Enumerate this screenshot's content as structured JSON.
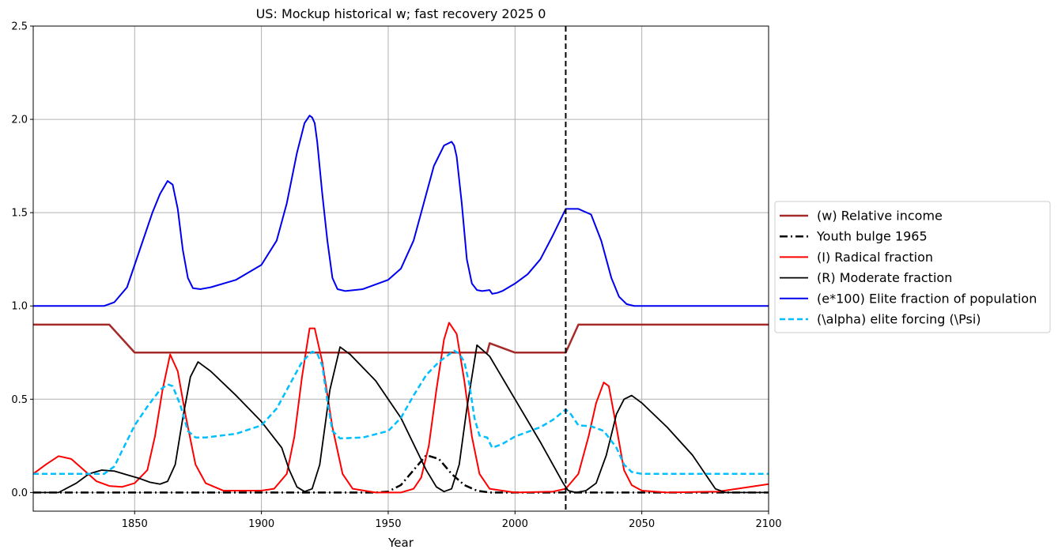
{
  "chart_data": {
    "type": "line",
    "title": "US: Mockup historical w; fast recovery 2025 0",
    "xlabel": "Year",
    "ylabel": "",
    "xlim": [
      1810,
      2100
    ],
    "ylim": [
      -0.1,
      2.5
    ],
    "xticks": [
      1850,
      1900,
      1950,
      2000,
      2050,
      2100
    ],
    "xtick_labels": [
      "1850",
      "1900",
      "1950",
      "2000",
      "2050",
      "2100"
    ],
    "yticks": [
      0.0,
      0.5,
      1.0,
      1.5,
      2.0,
      2.5
    ],
    "ytick_labels": [
      "0.0",
      "0.5",
      "1.0",
      "1.5",
      "2.0",
      "2.5"
    ],
    "grid": true,
    "legend_position": "outside-right",
    "vline": {
      "x": 2020,
      "color": "#000000",
      "style": "dashed"
    },
    "series": [
      {
        "name": "(w) Relative income",
        "color": "#a52a2a",
        "style": "solid",
        "width": 2.5,
        "x": [
          1810,
          1840,
          1850,
          1870,
          1900,
          1950,
          1989,
          1990,
          2000,
          2020,
          2025,
          2050,
          2100
        ],
        "y": [
          0.9,
          0.9,
          0.75,
          0.75,
          0.75,
          0.75,
          0.75,
          0.8,
          0.75,
          0.75,
          0.9,
          0.9,
          0.9
        ]
      },
      {
        "name": "Youth bulge 1965",
        "color": "#000000",
        "style": "dashdot",
        "width": 2.5,
        "x": [
          1810,
          1945,
          1950,
          1955,
          1960,
          1965,
          1970,
          1975,
          1980,
          1985,
          1990,
          2000,
          2100
        ],
        "y": [
          0,
          0,
          0.005,
          0.04,
          0.12,
          0.2,
          0.18,
          0.1,
          0.04,
          0.01,
          0,
          0,
          0
        ]
      },
      {
        "name": "(I) Radical fraction",
        "color": "#ff0000",
        "style": "solid",
        "width": 2,
        "x": [
          1810,
          1815,
          1820,
          1825,
          1830,
          1835,
          1840,
          1845,
          1850,
          1855,
          1858,
          1861,
          1864,
          1867,
          1870,
          1874,
          1878,
          1885,
          1900,
          1905,
          1910,
          1913,
          1916,
          1919,
          1921,
          1924,
          1928,
          1932,
          1936,
          1945,
          1955,
          1960,
          1963,
          1966,
          1969,
          1972,
          1974,
          1977,
          1980,
          1983,
          1986,
          1990,
          2000,
          2015,
          2020,
          2025,
          2029,
          2032,
          2035,
          2037,
          2040,
          2043,
          2046,
          2050,
          2060,
          2080,
          2100
        ],
        "y": [
          0.1,
          0.15,
          0.195,
          0.18,
          0.12,
          0.06,
          0.035,
          0.03,
          0.05,
          0.12,
          0.3,
          0.55,
          0.74,
          0.65,
          0.42,
          0.15,
          0.05,
          0.01,
          0.01,
          0.02,
          0.1,
          0.3,
          0.62,
          0.88,
          0.88,
          0.7,
          0.35,
          0.1,
          0.02,
          0.0,
          0.0,
          0.02,
          0.08,
          0.25,
          0.55,
          0.82,
          0.91,
          0.85,
          0.6,
          0.3,
          0.1,
          0.02,
          0.0,
          0.005,
          0.02,
          0.1,
          0.3,
          0.48,
          0.59,
          0.57,
          0.35,
          0.12,
          0.04,
          0.01,
          0.0,
          0.005,
          0.045
        ]
      },
      {
        "name": "(R) Moderate fraction",
        "color": "#000000",
        "style": "solid",
        "width": 1.8,
        "x": [
          1810,
          1820,
          1827,
          1832,
          1837,
          1842,
          1847,
          1852,
          1856,
          1860,
          1863,
          1866,
          1869,
          1872,
          1875,
          1880,
          1890,
          1900,
          1908,
          1911,
          1914,
          1917,
          1920,
          1923,
          1927,
          1931,
          1935,
          1945,
          1955,
          1965,
          1969,
          1972,
          1975,
          1978,
          1981,
          1985,
          1990,
          2000,
          2010,
          2019,
          2021,
          2024,
          2028,
          2032,
          2036,
          2040,
          2043,
          2046,
          2050,
          2060,
          2070,
          2079,
          2083,
          2100
        ],
        "y": [
          0.0,
          0.0,
          0.05,
          0.1,
          0.12,
          0.115,
          0.095,
          0.075,
          0.055,
          0.045,
          0.06,
          0.15,
          0.4,
          0.62,
          0.7,
          0.65,
          0.52,
          0.38,
          0.24,
          0.12,
          0.03,
          0.005,
          0.02,
          0.15,
          0.55,
          0.78,
          0.74,
          0.6,
          0.4,
          0.12,
          0.03,
          0.005,
          0.02,
          0.15,
          0.45,
          0.79,
          0.73,
          0.5,
          0.27,
          0.05,
          0.01,
          0.0,
          0.01,
          0.05,
          0.2,
          0.42,
          0.5,
          0.52,
          0.48,
          0.35,
          0.2,
          0.02,
          0.0,
          0.0
        ]
      },
      {
        "name": "(e*100) Elite fraction of population",
        "color": "#0000ee",
        "style": "solid",
        "width": 2,
        "x": [
          1810,
          1838,
          1842,
          1847,
          1852,
          1857,
          1860,
          1863,
          1865,
          1867,
          1869,
          1871,
          1873,
          1876,
          1880,
          1890,
          1900,
          1906,
          1910,
          1914,
          1917,
          1919,
          1920,
          1921,
          1922,
          1924,
          1926,
          1928,
          1930,
          1933,
          1940,
          1950,
          1955,
          1960,
          1964,
          1968,
          1972,
          1975,
          1976,
          1977,
          1979,
          1981,
          1983,
          1985,
          1987,
          1990,
          1991,
          1993,
          1995,
          2000,
          2005,
          2010,
          2015,
          2020,
          2025,
          2030,
          2034,
          2038,
          2041,
          2044,
          2047,
          2050,
          2060,
          2100
        ],
        "y": [
          1.0,
          1.0,
          1.02,
          1.1,
          1.3,
          1.5,
          1.6,
          1.67,
          1.65,
          1.52,
          1.3,
          1.15,
          1.095,
          1.09,
          1.1,
          1.14,
          1.22,
          1.35,
          1.55,
          1.82,
          1.98,
          2.02,
          2.01,
          1.98,
          1.88,
          1.6,
          1.35,
          1.15,
          1.09,
          1.08,
          1.09,
          1.14,
          1.2,
          1.35,
          1.55,
          1.75,
          1.86,
          1.88,
          1.86,
          1.8,
          1.55,
          1.25,
          1.12,
          1.085,
          1.08,
          1.085,
          1.065,
          1.07,
          1.08,
          1.12,
          1.17,
          1.25,
          1.38,
          1.52,
          1.52,
          1.49,
          1.35,
          1.15,
          1.05,
          1.01,
          1.0,
          1.0,
          1.0,
          1.0
        ]
      },
      {
        "name": "(\\alpha) elite forcing (\\Psi)",
        "color": "#00bfff",
        "style": "dashed",
        "width": 2.5,
        "x": [
          1810,
          1838,
          1842,
          1846,
          1850,
          1855,
          1860,
          1863,
          1865,
          1868,
          1871,
          1874,
          1878,
          1890,
          1900,
          1906,
          1912,
          1916,
          1920,
          1922,
          1924,
          1926,
          1928,
          1931,
          1940,
          1950,
          1955,
          1960,
          1965,
          1970,
          1974,
          1976,
          1978,
          1980,
          1982,
          1984,
          1986,
          1989,
          1991,
          1995,
          2000,
          2010,
          2015,
          2020,
          2022,
          2025,
          2030,
          2035,
          2040,
          2043,
          2046,
          2050,
          2060,
          2100
        ],
        "y": [
          0.1,
          0.1,
          0.14,
          0.25,
          0.36,
          0.46,
          0.55,
          0.58,
          0.57,
          0.47,
          0.33,
          0.295,
          0.295,
          0.315,
          0.36,
          0.45,
          0.6,
          0.7,
          0.755,
          0.745,
          0.68,
          0.49,
          0.33,
          0.29,
          0.295,
          0.33,
          0.4,
          0.52,
          0.63,
          0.7,
          0.74,
          0.76,
          0.745,
          0.7,
          0.58,
          0.4,
          0.305,
          0.295,
          0.24,
          0.26,
          0.3,
          0.35,
          0.39,
          0.445,
          0.42,
          0.36,
          0.355,
          0.33,
          0.24,
          0.15,
          0.11,
          0.1,
          0.1,
          0.1
        ]
      }
    ]
  }
}
